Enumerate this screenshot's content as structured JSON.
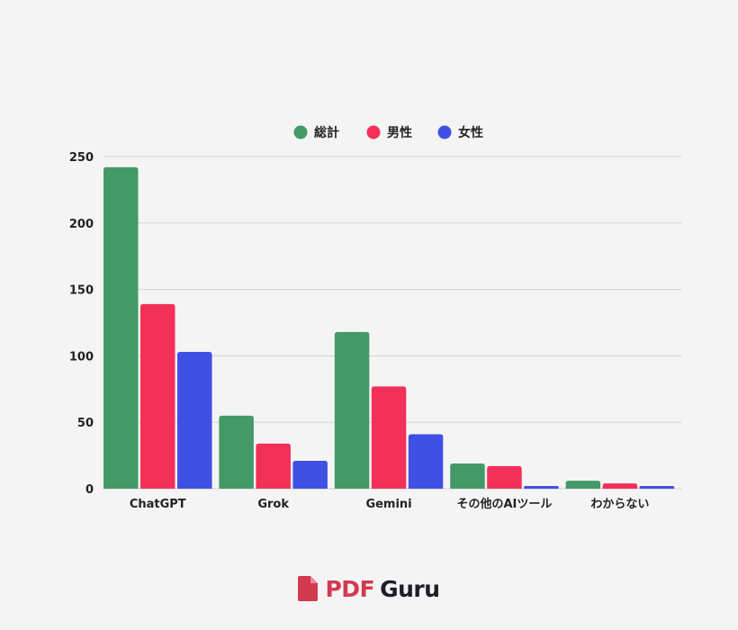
{
  "chart_data": {
    "type": "bar",
    "categories": [
      "ChatGPT",
      "Grok",
      "Gemini",
      "その他のAIツール",
      "わからない"
    ],
    "series": [
      {
        "name": "総計",
        "color": "#439a66",
        "values": [
          242,
          55,
          118,
          19,
          6
        ]
      },
      {
        "name": "男性",
        "color": "#f23058",
        "values": [
          139,
          34,
          77,
          17,
          4
        ]
      },
      {
        "name": "女性",
        "color": "#4050e3",
        "values": [
          103,
          21,
          41,
          2,
          2
        ]
      }
    ],
    "yticks": [
      0,
      50,
      100,
      150,
      200,
      250
    ],
    "ylim": [
      0,
      250
    ],
    "grid": true,
    "legend": "top-center"
  },
  "brand": {
    "part1": "PDF",
    "part2": "Guru",
    "color": "#d23a4f"
  }
}
